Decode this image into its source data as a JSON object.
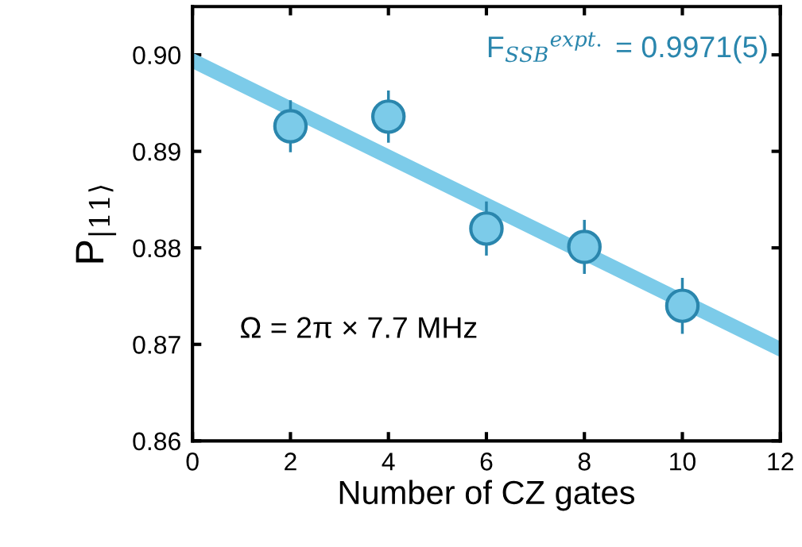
{
  "chart_data": {
    "type": "scatter",
    "xlabel": "Number of CZ gates",
    "ylabel": "P$_{|11⟩}$",
    "annotations": [
      "F$_{SSB}$$^{expt.}$ = 0.9971(5)",
      "Ω = 2π × 7.7 MHz"
    ],
    "series": [
      {
        "type": "line",
        "color": "#7ccbe9",
        "x": [
          0,
          12
        ],
        "values": [
          0.8994,
          0.8695
        ]
      },
      {
        "color": "#7ccbe9",
        "x": [
          2,
          4,
          6,
          8,
          10
        ],
        "values": [
          0.8926,
          0.8936,
          0.882,
          0.8801,
          0.874
        ],
        "errors": [
          0.0027,
          0.0027,
          0.0028,
          0.0028,
          0.0029
        ],
        "marker": "circle"
      }
    ],
    "xlim": [
      0,
      12
    ],
    "xticks": [
      0,
      2,
      4,
      6,
      8,
      10,
      12
    ],
    "ylim": [
      0.86,
      0.905
    ],
    "yticks": [
      0.86,
      0.87,
      0.88,
      0.89,
      {
        "value": 0.9,
        "label": "0.90"
      }
    ],
    "grid": false,
    "legend": false
  }
}
